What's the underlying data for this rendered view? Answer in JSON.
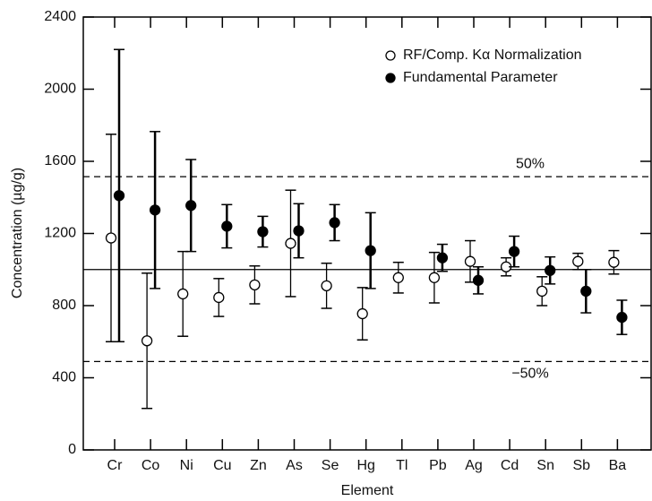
{
  "chart_data": {
    "type": "errorbar_scatter",
    "x_label": "Element",
    "y_label": "Concentration (µg/g)",
    "categories": [
      "Cr",
      "Co",
      "Ni",
      "Cu",
      "Zn",
      "As",
      "Se",
      "Hg",
      "Tl",
      "Pb",
      "Ag",
      "Cd",
      "Sn",
      "Sb",
      "Ba"
    ],
    "ylim": [
      0,
      2400
    ],
    "yticks": [
      0,
      400,
      800,
      1200,
      1600,
      2000,
      2400
    ],
    "reference_lines": [
      {
        "value": 1000,
        "style": "solid"
      },
      {
        "value": 1515,
        "style": "dashed",
        "label": "50%"
      },
      {
        "value": 490,
        "style": "dashed",
        "label": "−50%"
      }
    ],
    "legend": "top-right",
    "series": [
      {
        "name": "RF/Comp. Kα Normalization",
        "color": "#000000",
        "marker": "open",
        "values": [
          1175,
          605,
          865,
          845,
          915,
          1145,
          910,
          755,
          955,
          955,
          1045,
          1015,
          880,
          1045,
          1040
        ],
        "errors": [
          575,
          375,
          235,
          105,
          105,
          295,
          125,
          145,
          85,
          140,
          115,
          50,
          80,
          45,
          65
        ]
      },
      {
        "name": "Fundamental Parameter",
        "color": "#000000",
        "marker": "filled",
        "values": [
          1410,
          1330,
          1355,
          1240,
          1210,
          1215,
          1260,
          1105,
          null,
          1065,
          940,
          1100,
          995,
          880,
          735
        ],
        "errors": [
          810,
          435,
          255,
          120,
          85,
          150,
          100,
          210,
          null,
          75,
          75,
          85,
          75,
          120,
          95
        ]
      }
    ]
  }
}
